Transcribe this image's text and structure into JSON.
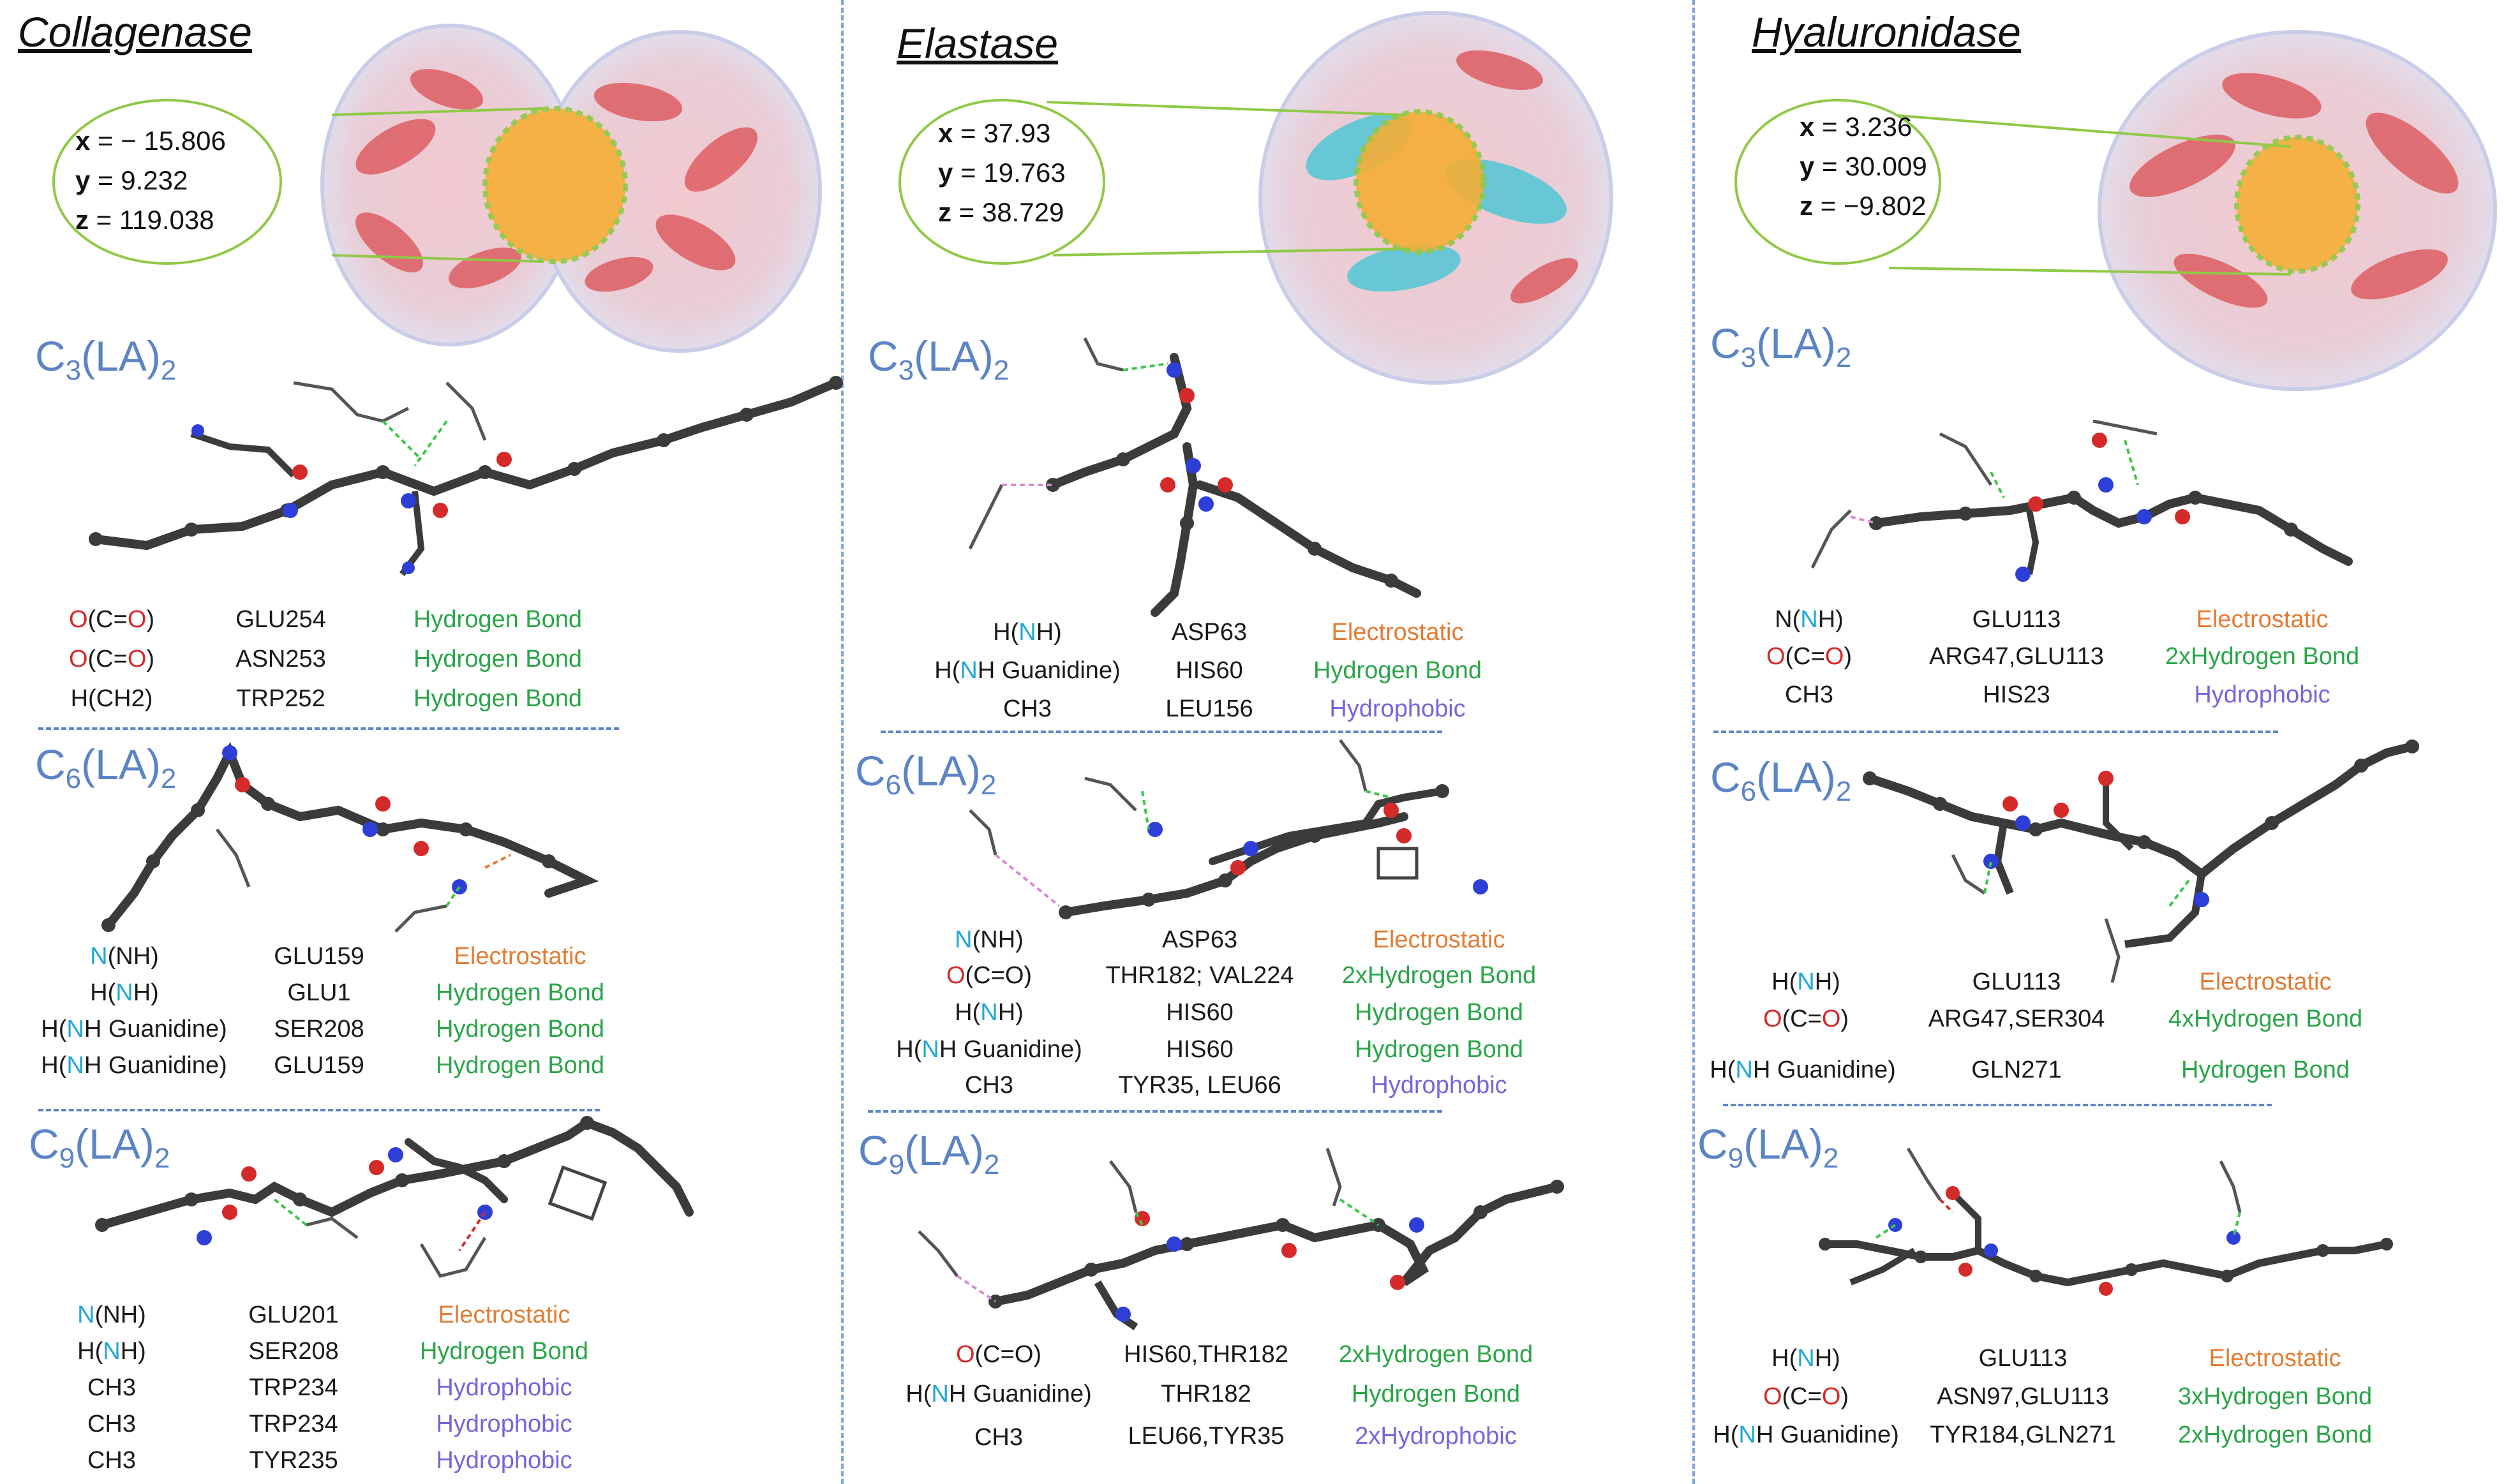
{
  "colors": {
    "compound_label": "#5b84c6",
    "electrostatic": "#e27b32",
    "hydrogen_bond": "#2aa548",
    "hydrophobic": "#7467d9",
    "oxygen": "#d42a2a",
    "nitrogen": "#21a7d6",
    "separator": "#5b86c9"
  },
  "compounds": {
    "c3": {
      "prefix": "C",
      "sub1": "3",
      "mid": "(LA)",
      "sub2": "2"
    },
    "c6": {
      "prefix": "C",
      "sub1": "6",
      "mid": "(LA)",
      "sub2": "2"
    },
    "c9": {
      "prefix": "C",
      "sub1": "9",
      "mid": "(LA)",
      "sub2": "2"
    }
  },
  "panels": [
    {
      "enzyme": "Collagenase",
      "coords": {
        "x_label": "x",
        "x": "= − 15.806",
        "y_label": "y",
        "y": "= 9.232",
        "z_label": "z",
        "z": "= 119.038"
      },
      "sections": [
        {
          "compound": "c3",
          "rows": [
            {
              "group": [
                "O",
                "(C=",
                "O",
                ")"
              ],
              "residue": "GLU254",
              "interaction": "Hydrogen Bond",
              "type": "hbond"
            },
            {
              "group": [
                "O",
                "(C=",
                "O",
                ")"
              ],
              "residue": "ASN253",
              "interaction": "Hydrogen Bond",
              "type": "hbond"
            },
            {
              "group": [
                "",
                "H(CH2)",
                "",
                ""
              ],
              "residue": "TRP252",
              "interaction": "Hydrogen Bond",
              "type": "hbond"
            }
          ]
        },
        {
          "compound": "c6",
          "rows": [
            {
              "group": [
                "",
                "",
                "N",
                "(NH)"
              ],
              "residue": "GLU159",
              "interaction": "Electrostatic",
              "type": "electrostatic"
            },
            {
              "group": [
                "",
                "H(",
                "N",
                "H)"
              ],
              "residue": "GLU1",
              "interaction": "Hydrogen Bond",
              "type": "hbond"
            },
            {
              "group": [
                "",
                "H(",
                "N",
                "H Guanidine)"
              ],
              "residue": "SER208",
              "interaction": "Hydrogen Bond",
              "type": "hbond"
            },
            {
              "group": [
                "",
                "H(",
                "N",
                "H Guanidine)"
              ],
              "residue": "GLU159",
              "interaction": "Hydrogen Bond",
              "type": "hbond"
            }
          ]
        },
        {
          "compound": "c9",
          "rows": [
            {
              "group": [
                "",
                "",
                "N",
                "(NH)"
              ],
              "residue": "GLU201",
              "interaction": "Electrostatic",
              "type": "electrostatic"
            },
            {
              "group": [
                "",
                "H(",
                "N",
                "H)"
              ],
              "residue": "SER208",
              "interaction": "Hydrogen Bond",
              "type": "hbond"
            },
            {
              "group": [
                "",
                "CH3",
                "",
                ""
              ],
              "residue": "TRP234",
              "interaction": "Hydrophobic",
              "type": "hydrophobic"
            },
            {
              "group": [
                "",
                "CH3",
                "",
                ""
              ],
              "residue": "TRP234",
              "interaction": "Hydrophobic",
              "type": "hydrophobic"
            },
            {
              "group": [
                "",
                "CH3",
                "",
                ""
              ],
              "residue": "TYR235",
              "interaction": "Hydrophobic",
              "type": "hydrophobic"
            }
          ]
        }
      ]
    },
    {
      "enzyme": "Elastase",
      "coords": {
        "x_label": "x",
        "x": "= 37.93",
        "y_label": "y",
        "y": "= 19.763",
        "z_label": "z",
        "z": "= 38.729"
      },
      "sections": [
        {
          "compound": "c3",
          "rows": [
            {
              "group": [
                "",
                "H(",
                "N",
                "H)"
              ],
              "residue": "ASP63",
              "interaction": "Electrostatic",
              "type": "electrostatic"
            },
            {
              "group": [
                "",
                "H(",
                "N",
                "H Guanidine)"
              ],
              "residue": "HIS60",
              "interaction": "Hydrogen Bond",
              "type": "hbond"
            },
            {
              "group": [
                "",
                "CH3",
                "",
                ""
              ],
              "residue": "LEU156",
              "interaction": "Hydrophobic",
              "type": "hydrophobic"
            }
          ]
        },
        {
          "compound": "c6",
          "rows": [
            {
              "group": [
                "",
                "",
                "N",
                "(NH)"
              ],
              "residue": "ASP63",
              "interaction": "Electrostatic",
              "type": "electrostatic"
            },
            {
              "group": [
                "O",
                "(C=O)",
                "",
                ""
              ],
              "residue": "THR182; VAL224",
              "interaction": "2xHydrogen Bond",
              "type": "hbond"
            },
            {
              "group": [
                "",
                "H(",
                "N",
                "H)"
              ],
              "residue": "HIS60",
              "interaction": "Hydrogen Bond",
              "type": "hbond"
            },
            {
              "group": [
                "",
                "H(",
                "N",
                "H Guanidine)"
              ],
              "residue": "HIS60",
              "interaction": "Hydrogen Bond",
              "type": "hbond"
            },
            {
              "group": [
                "",
                "CH3",
                "",
                ""
              ],
              "residue": "TYR35, LEU66",
              "interaction": "Hydrophobic",
              "type": "hydrophobic"
            }
          ]
        },
        {
          "compound": "c9",
          "rows": [
            {
              "group": [
                "O",
                "(C=O)",
                "",
                ""
              ],
              "residue": "HIS60,THR182",
              "interaction": "2xHydrogen Bond",
              "type": "hbond"
            },
            {
              "group": [
                "",
                "H(",
                "N",
                "H Guanidine)"
              ],
              "residue": "THR182",
              "interaction": "Hydrogen Bond",
              "type": "hbond"
            },
            {
              "group": [
                "",
                "CH3",
                "",
                ""
              ],
              "residue": "LEU66,TYR35",
              "interaction": "2xHydrophobic",
              "type": "hydrophobic"
            }
          ]
        }
      ]
    },
    {
      "enzyme": "Hyaluronidase",
      "coords": {
        "x_label": "x",
        "x": "= 3.236",
        "y_label": "y",
        "y": "= 30.009",
        "z_label": "z",
        "z": "= −9.802"
      },
      "sections": [
        {
          "compound": "c3",
          "rows": [
            {
              "group": [
                "",
                "N(",
                "N",
                "H)"
              ],
              "residue": "GLU113",
              "interaction": "Electrostatic",
              "type": "electrostatic"
            },
            {
              "group": [
                "O",
                "(C=",
                "O",
                ")"
              ],
              "residue": "ARG47,GLU113",
              "interaction": "2xHydrogen Bond",
              "type": "hbond"
            },
            {
              "group": [
                "",
                "CH3",
                "",
                ""
              ],
              "residue": "HIS23",
              "interaction": "Hydrophobic",
              "type": "hydrophobic"
            }
          ]
        },
        {
          "compound": "c6",
          "rows": [
            {
              "group": [
                "",
                "H(",
                "N",
                "H)"
              ],
              "residue": "GLU113",
              "interaction": "Electrostatic",
              "type": "electrostatic"
            },
            {
              "group": [
                "O",
                "(C=",
                "O",
                ")"
              ],
              "residue": "ARG47,SER304",
              "interaction": "4xHydrogen Bond",
              "type": "hbond"
            },
            {
              "group": [
                "",
                "H(",
                "N",
                "H Guanidine)"
              ],
              "residue": "GLN271",
              "interaction": "Hydrogen Bond",
              "type": "hbond"
            }
          ]
        },
        {
          "compound": "c9",
          "rows": [
            {
              "group": [
                "",
                "H(",
                "N",
                "H)"
              ],
              "residue": "GLU113",
              "interaction": "Electrostatic",
              "type": "electrostatic"
            },
            {
              "group": [
                "O",
                "(C=",
                "O",
                ")"
              ],
              "residue": "ASN97,GLU113",
              "interaction": "3xHydrogen Bond",
              "type": "hbond"
            },
            {
              "group": [
                "",
                "H(",
                "N",
                "H Guanidine)"
              ],
              "residue": "TYR184,GLN271",
              "interaction": "2xHydrogen Bond",
              "type": "hbond"
            }
          ]
        }
      ]
    }
  ]
}
